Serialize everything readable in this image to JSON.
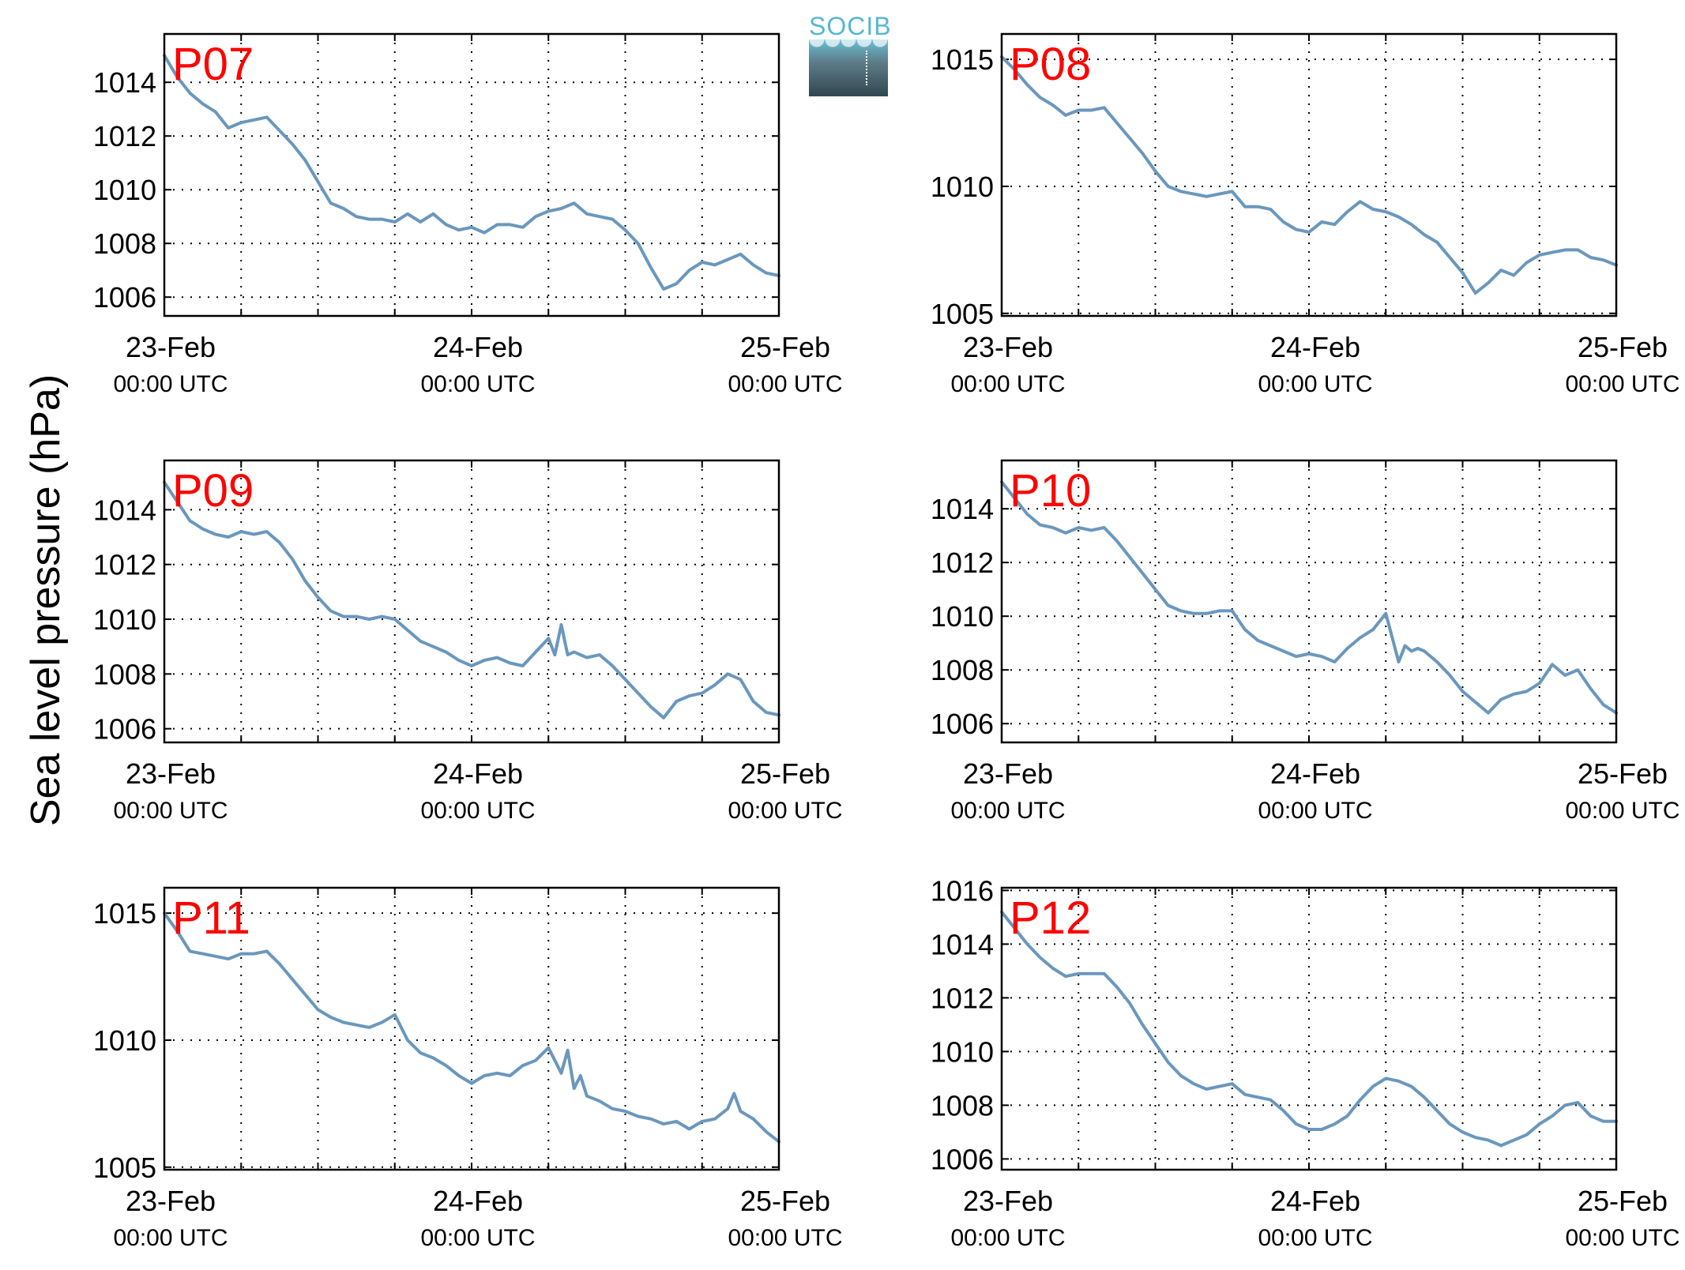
{
  "figure": {
    "ylabel": "Sea level pressure (hPa)",
    "logo_text": "SOCIB"
  },
  "chart_data": [
    {
      "type": "line",
      "title": "P07",
      "x_ticks": [
        {
          "date": "23-Feb",
          "time": "00:00 UTC"
        },
        {
          "date": "24-Feb",
          "time": "00:00 UTC"
        },
        {
          "date": "25-Feb",
          "time": "00:00 UTC"
        }
      ],
      "x_unit": "hours since 23-Feb 00:00 UTC",
      "xlim": [
        0,
        48
      ],
      "ylim": [
        1005.3,
        1015.8
      ],
      "yticks": [
        1006,
        1008,
        1010,
        1012,
        1014
      ],
      "grid": true,
      "series": [
        {
          "color": "#6a97bd",
          "x": [
            0,
            1,
            2,
            3,
            4,
            5,
            6,
            7,
            8,
            9,
            10,
            11,
            12,
            13,
            14,
            15,
            16,
            17,
            18,
            19,
            20,
            21,
            22,
            23,
            24,
            25,
            26,
            27,
            28,
            29,
            30,
            31,
            32,
            33,
            34,
            35,
            36,
            37,
            38,
            39,
            40,
            41,
            42,
            43,
            44,
            45,
            46,
            47,
            48
          ],
          "y": [
            1015.0,
            1014.2,
            1013.6,
            1013.2,
            1012.9,
            1012.3,
            1012.5,
            1012.6,
            1012.7,
            1012.2,
            1011.7,
            1011.1,
            1010.3,
            1009.5,
            1009.3,
            1009.0,
            1008.9,
            1008.9,
            1008.8,
            1009.1,
            1008.8,
            1009.1,
            1008.7,
            1008.5,
            1008.6,
            1008.4,
            1008.7,
            1008.7,
            1008.6,
            1009.0,
            1009.2,
            1009.3,
            1009.5,
            1009.1,
            1009.0,
            1008.9,
            1008.5,
            1008.0,
            1007.1,
            1006.3,
            1006.5,
            1007.0,
            1007.3,
            1007.2,
            1007.4,
            1007.6,
            1007.2,
            1006.9,
            1006.8
          ]
        }
      ]
    },
    {
      "type": "line",
      "title": "P08",
      "x_ticks": [
        {
          "date": "23-Feb",
          "time": "00:00 UTC"
        },
        {
          "date": "24-Feb",
          "time": "00:00 UTC"
        },
        {
          "date": "25-Feb",
          "time": "00:00 UTC"
        }
      ],
      "x_unit": "hours since 23-Feb 00:00 UTC",
      "xlim": [
        0,
        48
      ],
      "ylim": [
        1004.9,
        1016.0
      ],
      "yticks": [
        1005,
        1010,
        1015
      ],
      "grid": true,
      "series": [
        {
          "color": "#6a97bd",
          "x": [
            0,
            1,
            2,
            3,
            4,
            5,
            6,
            7,
            8,
            9,
            10,
            11,
            12,
            13,
            14,
            15,
            16,
            17,
            18,
            19,
            20,
            21,
            22,
            23,
            24,
            25,
            26,
            27,
            28,
            29,
            30,
            31,
            32,
            33,
            34,
            35,
            36,
            37,
            38,
            39,
            40,
            41,
            42,
            43,
            44,
            45,
            46,
            47,
            48
          ],
          "y": [
            1015.1,
            1014.6,
            1014.0,
            1013.5,
            1013.2,
            1012.8,
            1013.0,
            1013.0,
            1013.1,
            1012.5,
            1011.9,
            1011.3,
            1010.6,
            1010.0,
            1009.8,
            1009.7,
            1009.6,
            1009.7,
            1009.8,
            1009.2,
            1009.2,
            1009.1,
            1008.6,
            1008.3,
            1008.2,
            1008.6,
            1008.5,
            1009.0,
            1009.4,
            1009.1,
            1009.0,
            1008.8,
            1008.5,
            1008.1,
            1007.8,
            1007.2,
            1006.6,
            1005.8,
            1006.2,
            1006.7,
            1006.5,
            1007.0,
            1007.3,
            1007.4,
            1007.5,
            1007.5,
            1007.2,
            1007.1,
            1006.9
          ]
        }
      ]
    },
    {
      "type": "line",
      "title": "P09",
      "x_ticks": [
        {
          "date": "23-Feb",
          "time": "00:00 UTC"
        },
        {
          "date": "24-Feb",
          "time": "00:00 UTC"
        },
        {
          "date": "25-Feb",
          "time": "00:00 UTC"
        }
      ],
      "x_unit": "hours since 23-Feb 00:00 UTC",
      "xlim": [
        0,
        48
      ],
      "ylim": [
        1005.5,
        1015.8
      ],
      "yticks": [
        1006,
        1008,
        1010,
        1012,
        1014
      ],
      "grid": true,
      "series": [
        {
          "color": "#6a97bd",
          "x": [
            0,
            1,
            2,
            3,
            4,
            5,
            6,
            7,
            8,
            9,
            10,
            11,
            12,
            13,
            14,
            15,
            16,
            17,
            18,
            19,
            20,
            21,
            22,
            23,
            24,
            25,
            26,
            27,
            28,
            29,
            30,
            30.5,
            31,
            31.5,
            32,
            33,
            34,
            35,
            36,
            37,
            38,
            39,
            40,
            41,
            42,
            43,
            44,
            45,
            46,
            47,
            48
          ],
          "y": [
            1015.0,
            1014.3,
            1013.6,
            1013.3,
            1013.1,
            1013.0,
            1013.2,
            1013.1,
            1013.2,
            1012.8,
            1012.2,
            1011.4,
            1010.8,
            1010.3,
            1010.1,
            1010.1,
            1010.0,
            1010.1,
            1010.0,
            1009.6,
            1009.2,
            1009.0,
            1008.8,
            1008.5,
            1008.3,
            1008.5,
            1008.6,
            1008.4,
            1008.3,
            1008.8,
            1009.3,
            1008.7,
            1009.8,
            1008.7,
            1008.8,
            1008.6,
            1008.7,
            1008.3,
            1007.8,
            1007.3,
            1006.8,
            1006.4,
            1007.0,
            1007.2,
            1007.3,
            1007.6,
            1008.0,
            1007.8,
            1007.0,
            1006.6,
            1006.5
          ]
        }
      ]
    },
    {
      "type": "line",
      "title": "P10",
      "x_ticks": [
        {
          "date": "23-Feb",
          "time": "00:00 UTC"
        },
        {
          "date": "24-Feb",
          "time": "00:00 UTC"
        },
        {
          "date": "25-Feb",
          "time": "00:00 UTC"
        }
      ],
      "x_unit": "hours since 23-Feb 00:00 UTC",
      "xlim": [
        0,
        48
      ],
      "ylim": [
        1005.3,
        1015.8
      ],
      "yticks": [
        1006,
        1008,
        1010,
        1012,
        1014
      ],
      "grid": true,
      "series": [
        {
          "color": "#6a97bd",
          "x": [
            0,
            1,
            2,
            3,
            4,
            5,
            6,
            7,
            8,
            9,
            10,
            11,
            12,
            13,
            14,
            15,
            16,
            17,
            18,
            19,
            20,
            21,
            22,
            23,
            24,
            25,
            26,
            27,
            28,
            29,
            30,
            31,
            31.5,
            32,
            32.5,
            33,
            34,
            35,
            36,
            37,
            38,
            39,
            40,
            41,
            42,
            43,
            44,
            45,
            46,
            47,
            48
          ],
          "y": [
            1015.0,
            1014.4,
            1013.8,
            1013.4,
            1013.3,
            1013.1,
            1013.3,
            1013.2,
            1013.3,
            1012.8,
            1012.2,
            1011.6,
            1011.0,
            1010.4,
            1010.2,
            1010.1,
            1010.1,
            1010.2,
            1010.2,
            1009.5,
            1009.1,
            1008.9,
            1008.7,
            1008.5,
            1008.6,
            1008.5,
            1008.3,
            1008.8,
            1009.2,
            1009.5,
            1010.1,
            1008.3,
            1008.9,
            1008.7,
            1008.8,
            1008.7,
            1008.3,
            1007.8,
            1007.2,
            1006.8,
            1006.4,
            1006.9,
            1007.1,
            1007.2,
            1007.5,
            1008.2,
            1007.8,
            1008.0,
            1007.3,
            1006.7,
            1006.4
          ]
        }
      ]
    },
    {
      "type": "line",
      "title": "P11",
      "x_ticks": [
        {
          "date": "23-Feb",
          "time": "00:00 UTC"
        },
        {
          "date": "24-Feb",
          "time": "00:00 UTC"
        },
        {
          "date": "25-Feb",
          "time": "00:00 UTC"
        }
      ],
      "x_unit": "hours since 23-Feb 00:00 UTC",
      "xlim": [
        0,
        48
      ],
      "ylim": [
        1004.9,
        1016.0
      ],
      "yticks": [
        1005,
        1010,
        1015
      ],
      "grid": true,
      "series": [
        {
          "color": "#6a97bd",
          "x": [
            0,
            1,
            2,
            3,
            4,
            5,
            6,
            7,
            8,
            9,
            10,
            11,
            12,
            13,
            14,
            15,
            16,
            17,
            18,
            19,
            20,
            21,
            22,
            23,
            24,
            25,
            26,
            27,
            28,
            29,
            30,
            31,
            31.5,
            32,
            32.5,
            33,
            34,
            35,
            36,
            37,
            38,
            39,
            40,
            41,
            42,
            43,
            44,
            44.5,
            45,
            46,
            47,
            48
          ],
          "y": [
            1015.0,
            1014.3,
            1013.5,
            1013.4,
            1013.3,
            1013.2,
            1013.4,
            1013.4,
            1013.5,
            1013.0,
            1012.4,
            1011.8,
            1011.2,
            1010.9,
            1010.7,
            1010.6,
            1010.5,
            1010.7,
            1011.0,
            1010.0,
            1009.5,
            1009.3,
            1009.0,
            1008.6,
            1008.3,
            1008.6,
            1008.7,
            1008.6,
            1009.0,
            1009.2,
            1009.7,
            1008.7,
            1009.6,
            1008.1,
            1008.6,
            1007.8,
            1007.6,
            1007.3,
            1007.2,
            1007.0,
            1006.9,
            1006.7,
            1006.8,
            1006.5,
            1006.8,
            1006.9,
            1007.3,
            1007.9,
            1007.2,
            1006.9,
            1006.4,
            1006.0
          ]
        }
      ]
    },
    {
      "type": "line",
      "title": "P12",
      "x_ticks": [
        {
          "date": "23-Feb",
          "time": "00:00 UTC"
        },
        {
          "date": "24-Feb",
          "time": "00:00 UTC"
        },
        {
          "date": "25-Feb",
          "time": "00:00 UTC"
        }
      ],
      "x_unit": "hours since 23-Feb 00:00 UTC",
      "xlim": [
        0,
        48
      ],
      "ylim": [
        1005.6,
        1016.1
      ],
      "yticks": [
        1006,
        1008,
        1010,
        1012,
        1014,
        1016
      ],
      "grid": true,
      "series": [
        {
          "color": "#6a97bd",
          "x": [
            0,
            1,
            2,
            3,
            4,
            5,
            6,
            7,
            8,
            9,
            10,
            11,
            12,
            13,
            14,
            15,
            16,
            17,
            18,
            19,
            20,
            21,
            22,
            23,
            24,
            25,
            26,
            27,
            28,
            29,
            30,
            31,
            32,
            33,
            34,
            35,
            36,
            37,
            38,
            39,
            40,
            41,
            42,
            43,
            44,
            45,
            46,
            47,
            48
          ],
          "y": [
            1015.2,
            1014.6,
            1014.0,
            1013.5,
            1013.1,
            1012.8,
            1012.9,
            1012.9,
            1012.9,
            1012.4,
            1011.8,
            1011.0,
            1010.3,
            1009.6,
            1009.1,
            1008.8,
            1008.6,
            1008.7,
            1008.8,
            1008.4,
            1008.3,
            1008.2,
            1007.8,
            1007.3,
            1007.1,
            1007.1,
            1007.3,
            1007.6,
            1008.2,
            1008.7,
            1009.0,
            1008.9,
            1008.7,
            1008.3,
            1007.8,
            1007.3,
            1007.0,
            1006.8,
            1006.7,
            1006.5,
            1006.7,
            1006.9,
            1007.3,
            1007.6,
            1008.0,
            1008.1,
            1007.6,
            1007.4,
            1007.4
          ]
        }
      ]
    }
  ]
}
